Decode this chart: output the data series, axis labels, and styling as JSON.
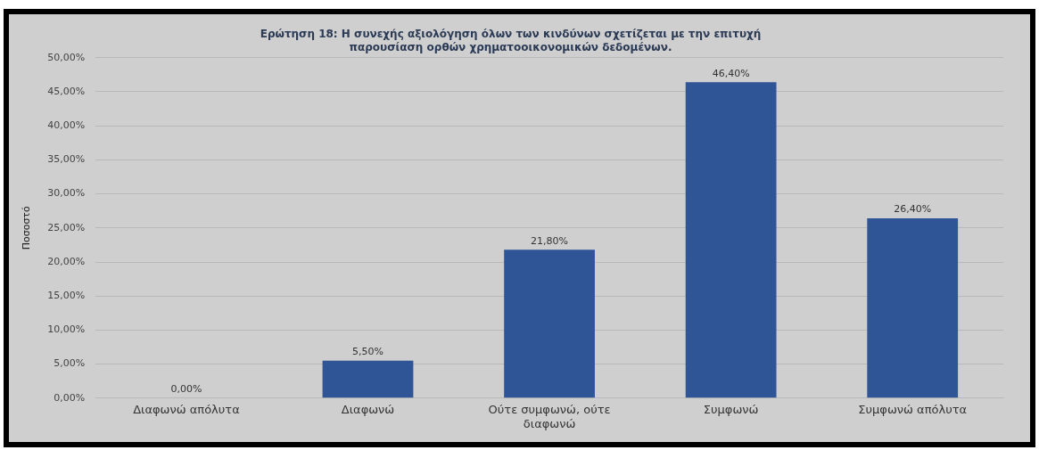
{
  "chart_data": {
    "type": "bar",
    "title": "Ερώτηση 18: Η συνεχής αξιολόγηση όλων των κινδύνων σχετίζεται με την επιτυχή παρουσίαση ορθών χρηματοοικονομικών δεδομένων.",
    "ylabel": "Ποσοστό",
    "categories": [
      "Διαφωνώ απόλυτα",
      "Διαφωνώ",
      "Ούτε συμφωνώ, ούτε διαφωνώ",
      "Συμφωνώ",
      "Συμφωνώ απόλυτα"
    ],
    "values": [
      0,
      5.5,
      21.8,
      46.4,
      26.4
    ],
    "value_labels": [
      "0,00%",
      "5,50%",
      "21,80%",
      "46,40%",
      "26,40%"
    ],
    "color": "#2f5597",
    "ylim": [
      0,
      50
    ],
    "yticks": [
      {
        "value": 0,
        "label": "0,00%"
      },
      {
        "value": 5,
        "label": "5,00%"
      },
      {
        "value": 10,
        "label": "10,00%"
      },
      {
        "value": 15,
        "label": "15,00%"
      },
      {
        "value": 20,
        "label": "20,00%"
      },
      {
        "value": 25,
        "label": "25,00%"
      },
      {
        "value": 30,
        "label": "30,00%"
      },
      {
        "value": 35,
        "label": "35,00%"
      },
      {
        "value": 40,
        "label": "40,00%"
      },
      {
        "value": 45,
        "label": "45,00%"
      },
      {
        "value": 50,
        "label": "50,00%"
      }
    ],
    "grid": "y"
  }
}
